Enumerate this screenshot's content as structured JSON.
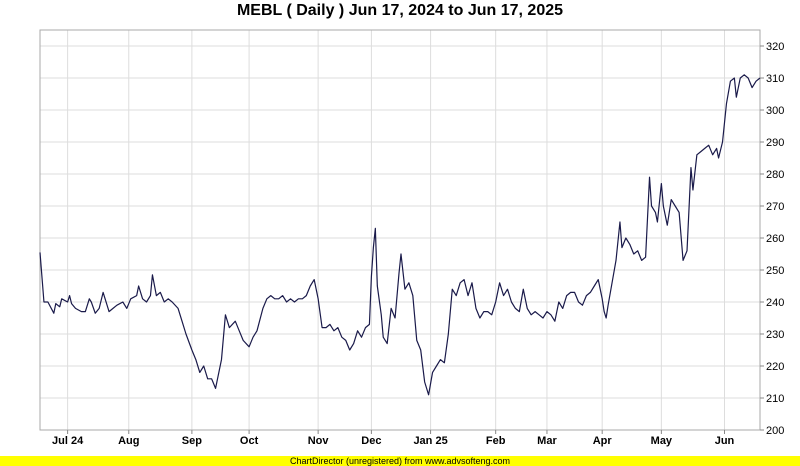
{
  "chart_data": {
    "type": "line",
    "title": "MEBL ( Daily ) Jun 17, 2024 to Jun 17, 2025",
    "xlabel": "",
    "ylabel": "",
    "ylim": [
      200,
      325
    ],
    "y_ticks": [
      200,
      210,
      220,
      230,
      240,
      250,
      260,
      270,
      280,
      290,
      300,
      310,
      320
    ],
    "x_range": [
      "2024-06-17",
      "2025-06-17"
    ],
    "x_ticks": [
      {
        "label": "Jul 24",
        "date": "2024-07-01"
      },
      {
        "label": "Aug",
        "date": "2024-08-01"
      },
      {
        "label": "Sep",
        "date": "2024-09-02"
      },
      {
        "label": "Oct",
        "date": "2024-10-01"
      },
      {
        "label": "Nov",
        "date": "2024-11-05"
      },
      {
        "label": "Dec",
        "date": "2024-12-02"
      },
      {
        "label": "Jan 25",
        "date": "2025-01-01"
      },
      {
        "label": "Feb",
        "date": "2025-02-03"
      },
      {
        "label": "Mar",
        "date": "2025-03-01"
      },
      {
        "label": "Apr",
        "date": "2025-03-29"
      },
      {
        "label": "May",
        "date": "2025-04-28"
      },
      {
        "label": "Jun",
        "date": "2025-05-30"
      }
    ],
    "grid": true,
    "colors": {
      "line": "#1a1a4a",
      "grid": "#dddddd",
      "frame": "#aaaaaa",
      "banner": "#ffff00"
    },
    "series": [
      {
        "points": [
          [
            "2024-06-17",
            255.5
          ],
          [
            "2024-06-19",
            240
          ],
          [
            "2024-06-21",
            240
          ],
          [
            "2024-06-24",
            236.5
          ],
          [
            "2024-06-25",
            239.5
          ],
          [
            "2024-06-27",
            238.5
          ],
          [
            "2024-06-28",
            241
          ],
          [
            "2024-07-01",
            240
          ],
          [
            "2024-07-02",
            242
          ],
          [
            "2024-07-03",
            239.5
          ],
          [
            "2024-07-05",
            238
          ],
          [
            "2024-07-08",
            237
          ],
          [
            "2024-07-10",
            237
          ],
          [
            "2024-07-12",
            241
          ],
          [
            "2024-07-13",
            240
          ],
          [
            "2024-07-15",
            236.5
          ],
          [
            "2024-07-17",
            238
          ],
          [
            "2024-07-19",
            243
          ],
          [
            "2024-07-20",
            241
          ],
          [
            "2024-07-22",
            237
          ],
          [
            "2024-07-24",
            238
          ],
          [
            "2024-07-26",
            239
          ],
          [
            "2024-07-29",
            240
          ],
          [
            "2024-07-31",
            238
          ],
          [
            "2024-08-02",
            241
          ],
          [
            "2024-08-05",
            242
          ],
          [
            "2024-08-06",
            245
          ],
          [
            "2024-08-08",
            241
          ],
          [
            "2024-08-10",
            240
          ],
          [
            "2024-08-12",
            242
          ],
          [
            "2024-08-13",
            248.5
          ],
          [
            "2024-08-15",
            242
          ],
          [
            "2024-08-17",
            243
          ],
          [
            "2024-08-19",
            240
          ],
          [
            "2024-08-21",
            241
          ],
          [
            "2024-08-23",
            240
          ],
          [
            "2024-08-26",
            238
          ],
          [
            "2024-08-28",
            234
          ],
          [
            "2024-08-30",
            230
          ],
          [
            "2024-09-02",
            225
          ],
          [
            "2024-09-04",
            222
          ],
          [
            "2024-09-06",
            218
          ],
          [
            "2024-09-08",
            220
          ],
          [
            "2024-09-10",
            216
          ],
          [
            "2024-09-12",
            216
          ],
          [
            "2024-09-14",
            213
          ],
          [
            "2024-09-17",
            222
          ],
          [
            "2024-09-19",
            236
          ],
          [
            "2024-09-21",
            232
          ],
          [
            "2024-09-24",
            234
          ],
          [
            "2024-09-26",
            231
          ],
          [
            "2024-09-28",
            228
          ],
          [
            "2024-10-01",
            226
          ],
          [
            "2024-10-03",
            229
          ],
          [
            "2024-10-05",
            231
          ],
          [
            "2024-10-08",
            238
          ],
          [
            "2024-10-10",
            241
          ],
          [
            "2024-10-12",
            242
          ],
          [
            "2024-10-14",
            241
          ],
          [
            "2024-10-16",
            241
          ],
          [
            "2024-10-18",
            242
          ],
          [
            "2024-10-20",
            240
          ],
          [
            "2024-10-22",
            241
          ],
          [
            "2024-10-24",
            240
          ],
          [
            "2024-10-26",
            241
          ],
          [
            "2024-10-28",
            241
          ],
          [
            "2024-10-30",
            242
          ],
          [
            "2024-11-01",
            245
          ],
          [
            "2024-11-03",
            247
          ],
          [
            "2024-11-05",
            241
          ],
          [
            "2024-11-07",
            232
          ],
          [
            "2024-11-09",
            232
          ],
          [
            "2024-11-11",
            233
          ],
          [
            "2024-11-13",
            231
          ],
          [
            "2024-11-15",
            232
          ],
          [
            "2024-11-17",
            229
          ],
          [
            "2024-11-19",
            228
          ],
          [
            "2024-11-21",
            225
          ],
          [
            "2024-11-23",
            227
          ],
          [
            "2024-11-25",
            231
          ],
          [
            "2024-11-27",
            229
          ],
          [
            "2024-11-29",
            232
          ],
          [
            "2024-12-01",
            233
          ],
          [
            "2024-12-02",
            248
          ],
          [
            "2024-12-03",
            257
          ],
          [
            "2024-12-04",
            263
          ],
          [
            "2024-12-05",
            245
          ],
          [
            "2024-12-07",
            236
          ],
          [
            "2024-12-08",
            229
          ],
          [
            "2024-12-10",
            227
          ],
          [
            "2024-12-12",
            238
          ],
          [
            "2024-12-14",
            235
          ],
          [
            "2024-12-16",
            249
          ],
          [
            "2024-12-17",
            255
          ],
          [
            "2024-12-19",
            244
          ],
          [
            "2024-12-21",
            246
          ],
          [
            "2024-12-23",
            242
          ],
          [
            "2024-12-25",
            228
          ],
          [
            "2024-12-27",
            225
          ],
          [
            "2024-12-29",
            215
          ],
          [
            "2024-12-31",
            211
          ],
          [
            "2025-01-02",
            218
          ],
          [
            "2025-01-04",
            220
          ],
          [
            "2025-01-06",
            222
          ],
          [
            "2025-01-08",
            221
          ],
          [
            "2025-01-10",
            230
          ],
          [
            "2025-01-12",
            244
          ],
          [
            "2025-01-14",
            242
          ],
          [
            "2025-01-16",
            246
          ],
          [
            "2025-01-18",
            247
          ],
          [
            "2025-01-20",
            242
          ],
          [
            "2025-01-22",
            246
          ],
          [
            "2025-01-24",
            238
          ],
          [
            "2025-01-26",
            235
          ],
          [
            "2025-01-28",
            237
          ],
          [
            "2025-01-30",
            237
          ],
          [
            "2025-02-01",
            236
          ],
          [
            "2025-02-03",
            240
          ],
          [
            "2025-02-05",
            246
          ],
          [
            "2025-02-07",
            242
          ],
          [
            "2025-02-09",
            244
          ],
          [
            "2025-02-11",
            240
          ],
          [
            "2025-02-13",
            238
          ],
          [
            "2025-02-15",
            237
          ],
          [
            "2025-02-17",
            244
          ],
          [
            "2025-02-19",
            238
          ],
          [
            "2025-02-21",
            236
          ],
          [
            "2025-02-23",
            237
          ],
          [
            "2025-02-25",
            236
          ],
          [
            "2025-02-27",
            235
          ],
          [
            "2025-03-01",
            237
          ],
          [
            "2025-03-03",
            236
          ],
          [
            "2025-03-05",
            234
          ],
          [
            "2025-03-07",
            240
          ],
          [
            "2025-03-09",
            238
          ],
          [
            "2025-03-11",
            242
          ],
          [
            "2025-03-13",
            243
          ],
          [
            "2025-03-15",
            243
          ],
          [
            "2025-03-17",
            240
          ],
          [
            "2025-03-19",
            239
          ],
          [
            "2025-03-21",
            242
          ],
          [
            "2025-03-23",
            243
          ],
          [
            "2025-03-25",
            245
          ],
          [
            "2025-03-27",
            247
          ],
          [
            "2025-03-29",
            241
          ],
          [
            "2025-03-30",
            237
          ],
          [
            "2025-03-31",
            235
          ],
          [
            "2025-04-01",
            239
          ],
          [
            "2025-04-03",
            246
          ],
          [
            "2025-04-05",
            253
          ],
          [
            "2025-04-07",
            265
          ],
          [
            "2025-04-08",
            257
          ],
          [
            "2025-04-10",
            260
          ],
          [
            "2025-04-12",
            258
          ],
          [
            "2025-04-14",
            255
          ],
          [
            "2025-04-16",
            256
          ],
          [
            "2025-04-18",
            253
          ],
          [
            "2025-04-20",
            254
          ],
          [
            "2025-04-22",
            279
          ],
          [
            "2025-04-23",
            270
          ],
          [
            "2025-04-25",
            268
          ],
          [
            "2025-04-26",
            265
          ],
          [
            "2025-04-28",
            277
          ],
          [
            "2025-04-29",
            270
          ],
          [
            "2025-05-01",
            264
          ],
          [
            "2025-05-03",
            272
          ],
          [
            "2025-05-05",
            270
          ],
          [
            "2025-05-07",
            268
          ],
          [
            "2025-05-09",
            253
          ],
          [
            "2025-05-11",
            256
          ],
          [
            "2025-05-13",
            282
          ],
          [
            "2025-05-14",
            275
          ],
          [
            "2025-05-16",
            286
          ],
          [
            "2025-05-18",
            287
          ],
          [
            "2025-05-20",
            288
          ],
          [
            "2025-05-22",
            289
          ],
          [
            "2025-05-24",
            286
          ],
          [
            "2025-05-26",
            288
          ],
          [
            "2025-05-27",
            285
          ],
          [
            "2025-05-29",
            290
          ],
          [
            "2025-05-31",
            302
          ],
          [
            "2025-06-02",
            309
          ],
          [
            "2025-06-04",
            310
          ],
          [
            "2025-06-05",
            304
          ],
          [
            "2025-06-07",
            310
          ],
          [
            "2025-06-09",
            311
          ],
          [
            "2025-06-11",
            310
          ],
          [
            "2025-06-13",
            307
          ],
          [
            "2025-06-15",
            309
          ],
          [
            "2025-06-17",
            310
          ]
        ]
      }
    ]
  },
  "footer": {
    "credit": "ChartDirector (unregistered) from www.advsofteng.com"
  }
}
